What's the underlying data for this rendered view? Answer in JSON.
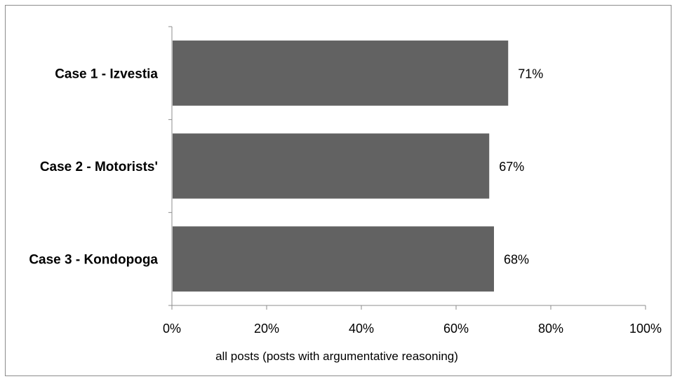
{
  "chart_data": {
    "type": "bar",
    "orientation": "horizontal",
    "categories": [
      "Case 1 - Izvestia",
      "Case 2 - Motorists'",
      "Case 3 - Kondopoga"
    ],
    "values": [
      71,
      67,
      68
    ],
    "value_labels": [
      "71%",
      "67%",
      "68%"
    ],
    "xlabel": "all posts (posts with argumentative reasoning)",
    "xlim": [
      0,
      100
    ],
    "xticks": [
      0,
      20,
      40,
      60,
      80,
      100
    ],
    "xtick_labels": [
      "0%",
      "20%",
      "40%",
      "60%",
      "80%",
      "100%"
    ],
    "grid": false,
    "legend": "none",
    "bar_color": "#626262",
    "axis_color": "#8c8c8c"
  }
}
